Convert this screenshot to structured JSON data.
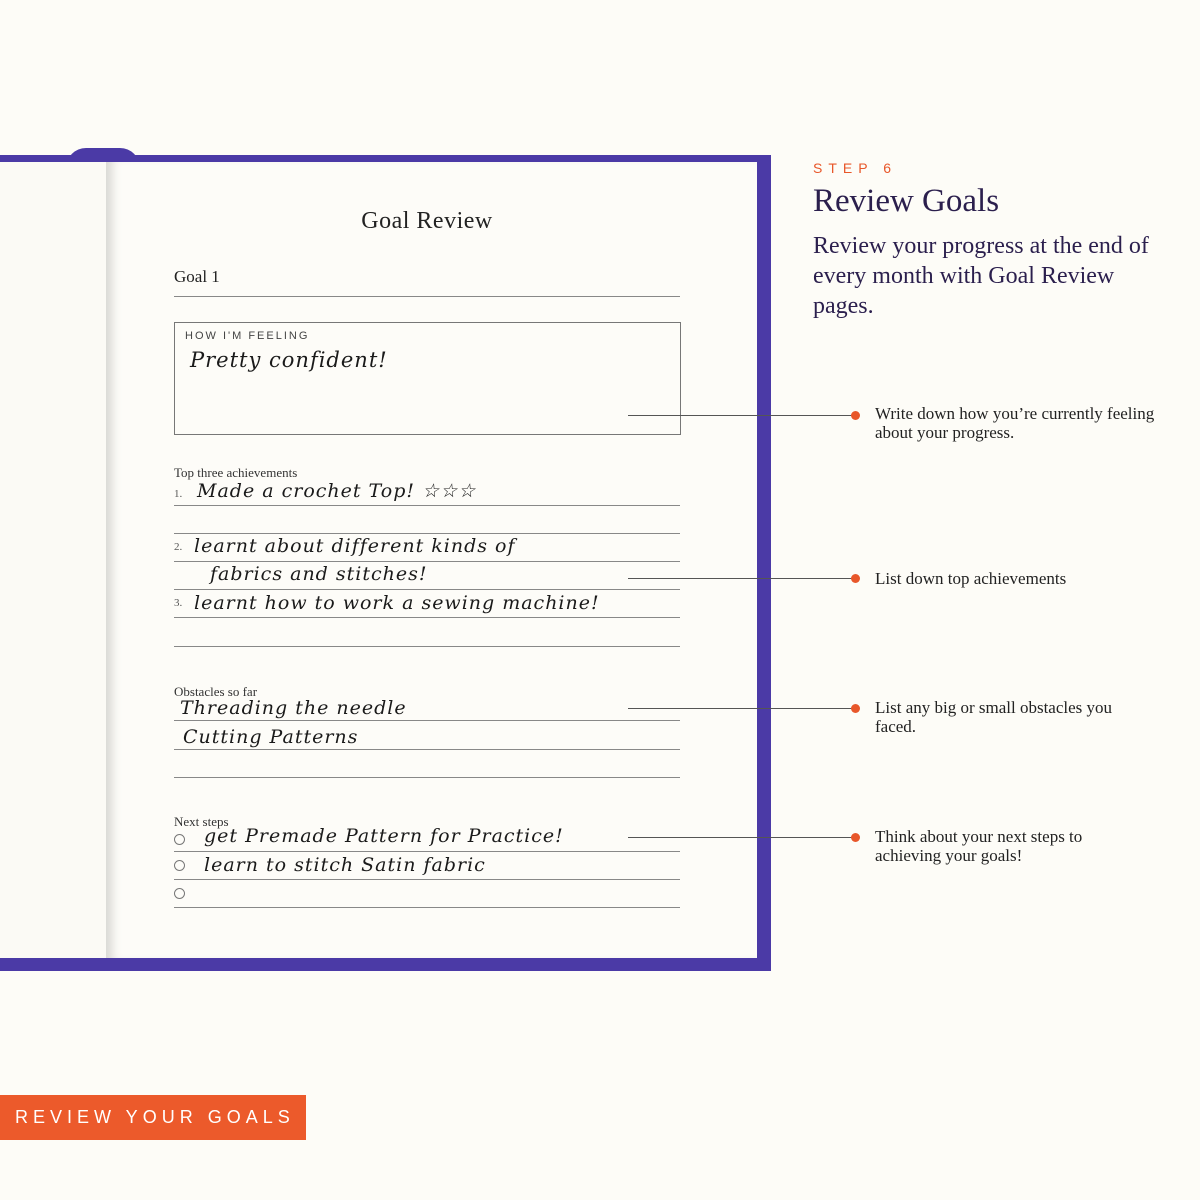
{
  "planner": {
    "page_title": "Goal Review",
    "goal_label": "Goal 1",
    "feeling": {
      "label": "HOW I'M FEELING",
      "entry": "Pretty confident!"
    },
    "achievements": {
      "label": "Top three achievements",
      "items": [
        {
          "num": "1.",
          "lines": [
            "Made a crochet Top! ☆☆☆"
          ]
        },
        {
          "num": "2.",
          "lines": [
            "learnt about different kinds of",
            "fabrics and stitches!"
          ]
        },
        {
          "num": "3.",
          "lines": [
            "learnt how to work a sewing machine!"
          ]
        }
      ]
    },
    "obstacles": {
      "label": "Obstacles so far",
      "lines": [
        "Threading the needle",
        "Cutting Patterns"
      ]
    },
    "next_steps": {
      "label": "Next steps",
      "items": [
        "get Premade Pattern for Practice!",
        "learn to stitch Satin fabric",
        ""
      ]
    }
  },
  "info": {
    "step": "STEP 6",
    "heading": "Review Goals",
    "description": "Review your progress at the end of every month with Goal Review pages."
  },
  "callouts": [
    "Write down how you’re currently feeling about your progress.",
    "List down top achievements",
    "List any big or small obstacles you faced.",
    "Think about your next steps to achieving your goals!"
  ],
  "badge": "REVIEW YOUR GOALS",
  "colors": {
    "cover": "#4b3aa6",
    "accent": "#e8572a",
    "heading": "#2b1f4d"
  }
}
